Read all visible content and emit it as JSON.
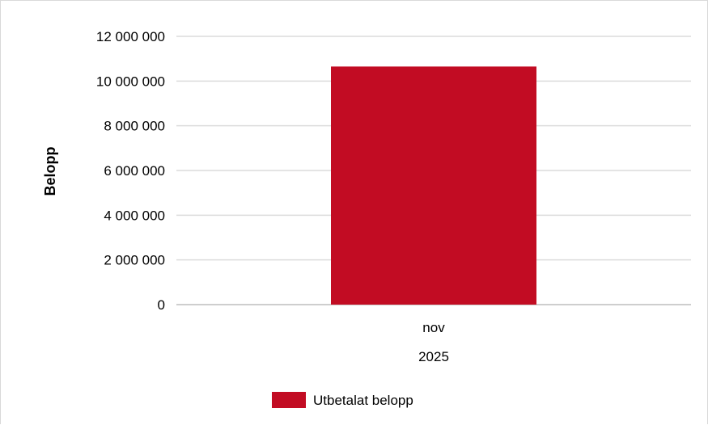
{
  "chart_data": {
    "type": "bar",
    "categories": [
      "nov"
    ],
    "group_label": "2025",
    "series": [
      {
        "name": "Utbetalat belopp",
        "values": [
          10650000
        ],
        "color": "#c20c23"
      }
    ],
    "ylabel": "Belopp",
    "ylim": [
      0,
      12000000
    ],
    "yticks": [
      0,
      2000000,
      4000000,
      6000000,
      8000000,
      10000000,
      12000000
    ],
    "ytick_labels": [
      "0",
      "2 000 000",
      "4 000 000",
      "6 000 000",
      "8 000 000",
      "10 000 000",
      "12 000 000"
    ],
    "grid": true,
    "legend_position": "bottom"
  }
}
